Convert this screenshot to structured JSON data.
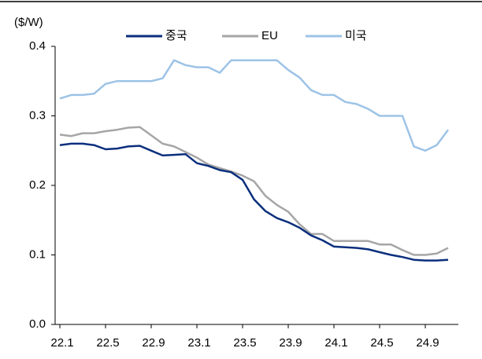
{
  "chart_data": {
    "type": "line",
    "y_label": "($/W)",
    "categories": [
      "22.1",
      null,
      null,
      null,
      "22.5",
      null,
      null,
      null,
      "22.9",
      null,
      null,
      null,
      "23.1",
      null,
      null,
      null,
      "23.5",
      null,
      null,
      null,
      "23.9",
      null,
      null,
      null,
      "24.1",
      null,
      null,
      null,
      "24.5",
      null,
      null,
      null,
      "24.9",
      null,
      null
    ],
    "series": [
      {
        "name": "중국",
        "color": "#0b2f7d",
        "values": [
          0.258,
          0.26,
          0.26,
          0.258,
          0.252,
          0.253,
          0.256,
          0.257,
          0.25,
          0.243,
          0.244,
          0.245,
          0.232,
          0.228,
          0.222,
          0.219,
          0.208,
          0.18,
          0.163,
          0.153,
          0.147,
          0.139,
          0.128,
          0.121,
          0.112,
          0.111,
          0.11,
          0.108,
          0.104,
          0.1,
          0.097,
          0.093,
          0.092,
          0.092,
          0.093
        ]
      },
      {
        "name": "EU",
        "color": "#a6a6a6",
        "values": [
          0.273,
          0.271,
          0.275,
          0.275,
          0.278,
          0.28,
          0.283,
          0.284,
          0.272,
          0.26,
          0.256,
          0.248,
          0.24,
          0.23,
          0.225,
          0.22,
          0.214,
          0.206,
          0.185,
          0.172,
          0.162,
          0.144,
          0.13,
          0.13,
          0.12,
          0.12,
          0.12,
          0.12,
          0.115,
          0.115,
          0.107,
          0.1,
          0.1,
          0.102,
          0.11
        ]
      },
      {
        "name": "미국",
        "color": "#9dc3e6",
        "values": [
          0.325,
          0.33,
          0.33,
          0.332,
          0.346,
          0.35,
          0.35,
          0.35,
          0.35,
          0.354,
          0.38,
          0.373,
          0.37,
          0.37,
          0.362,
          0.38,
          0.38,
          0.38,
          0.38,
          0.38,
          0.366,
          0.355,
          0.337,
          0.33,
          0.33,
          0.32,
          0.317,
          0.31,
          0.3,
          0.3,
          0.3,
          0.256,
          0.25,
          0.258,
          0.28
        ]
      }
    ],
    "ylim": [
      0,
      0.4
    ],
    "yticks": [
      {
        "value": 0,
        "label": "0.0"
      },
      0.1,
      0.2,
      0.3,
      0.4
    ],
    "legend": "top"
  }
}
